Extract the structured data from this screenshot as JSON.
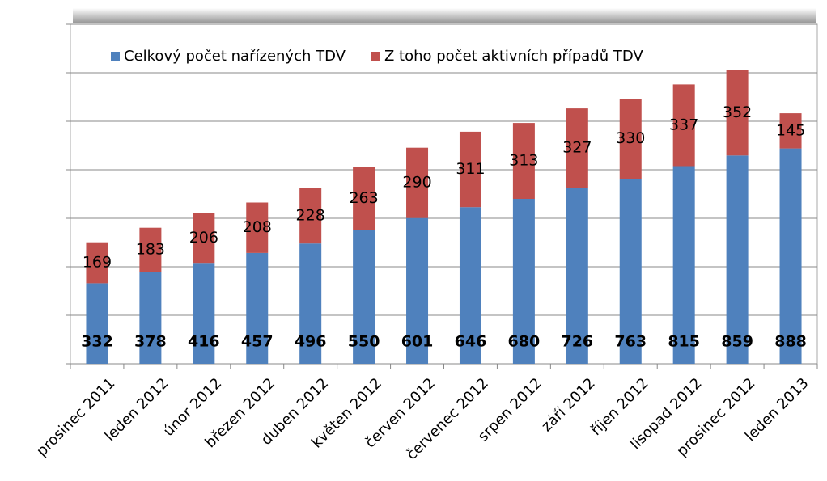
{
  "chart_data": {
    "type": "stacked_bar",
    "categories": [
      "prosinec 2011",
      "leden 2012",
      "únor 2012",
      "březen 2012",
      "duben 2012",
      "květen 2012",
      "červen 2012",
      "červenec 2012",
      "srpen 2012",
      "září 2012",
      "říjen 2012",
      "lisopad 2012",
      "prosinec 2012",
      "leden 2013"
    ],
    "series": [
      {
        "name": "Celkový počet nařízených TDV",
        "color": "#4f81bd",
        "values": [
          332,
          378,
          416,
          457,
          496,
          550,
          601,
          646,
          680,
          726,
          763,
          815,
          859,
          888
        ]
      },
      {
        "name": "Z toho počet aktivních případů TDV",
        "color": "#c0504d",
        "values": [
          169,
          183,
          206,
          208,
          228,
          263,
          290,
          311,
          313,
          327,
          330,
          337,
          352,
          145
        ]
      }
    ],
    "ylim": [
      0,
      1400
    ],
    "yticks": [
      0,
      200,
      400,
      600,
      800,
      1000,
      1200,
      1400
    ],
    "grid": true,
    "legend": "top"
  }
}
